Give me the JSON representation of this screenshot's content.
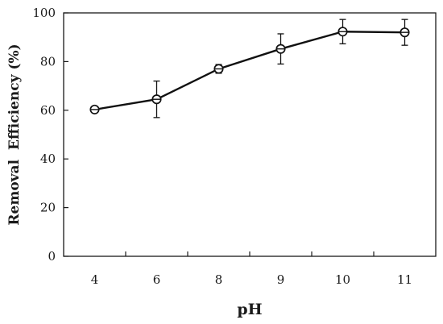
{
  "chart_data": {
    "type": "line",
    "title": "",
    "xlabel": "pH",
    "ylabel": "Removal  Efficiency (%)",
    "categories": [
      "4",
      "6",
      "8",
      "9",
      "10",
      "11"
    ],
    "series": [
      {
        "values": [
          60.3,
          64.5,
          77.0,
          85.2,
          92.3,
          92.0
        ],
        "error": [
          0.8,
          7.5,
          1.8,
          6.2,
          5.0,
          5.3
        ],
        "marker": "circle-open",
        "color": "#111111"
      }
    ],
    "ylim": [
      0,
      100
    ],
    "yticks": [
      0,
      20,
      40,
      60,
      80,
      100
    ],
    "grid": false,
    "legend": "none"
  }
}
